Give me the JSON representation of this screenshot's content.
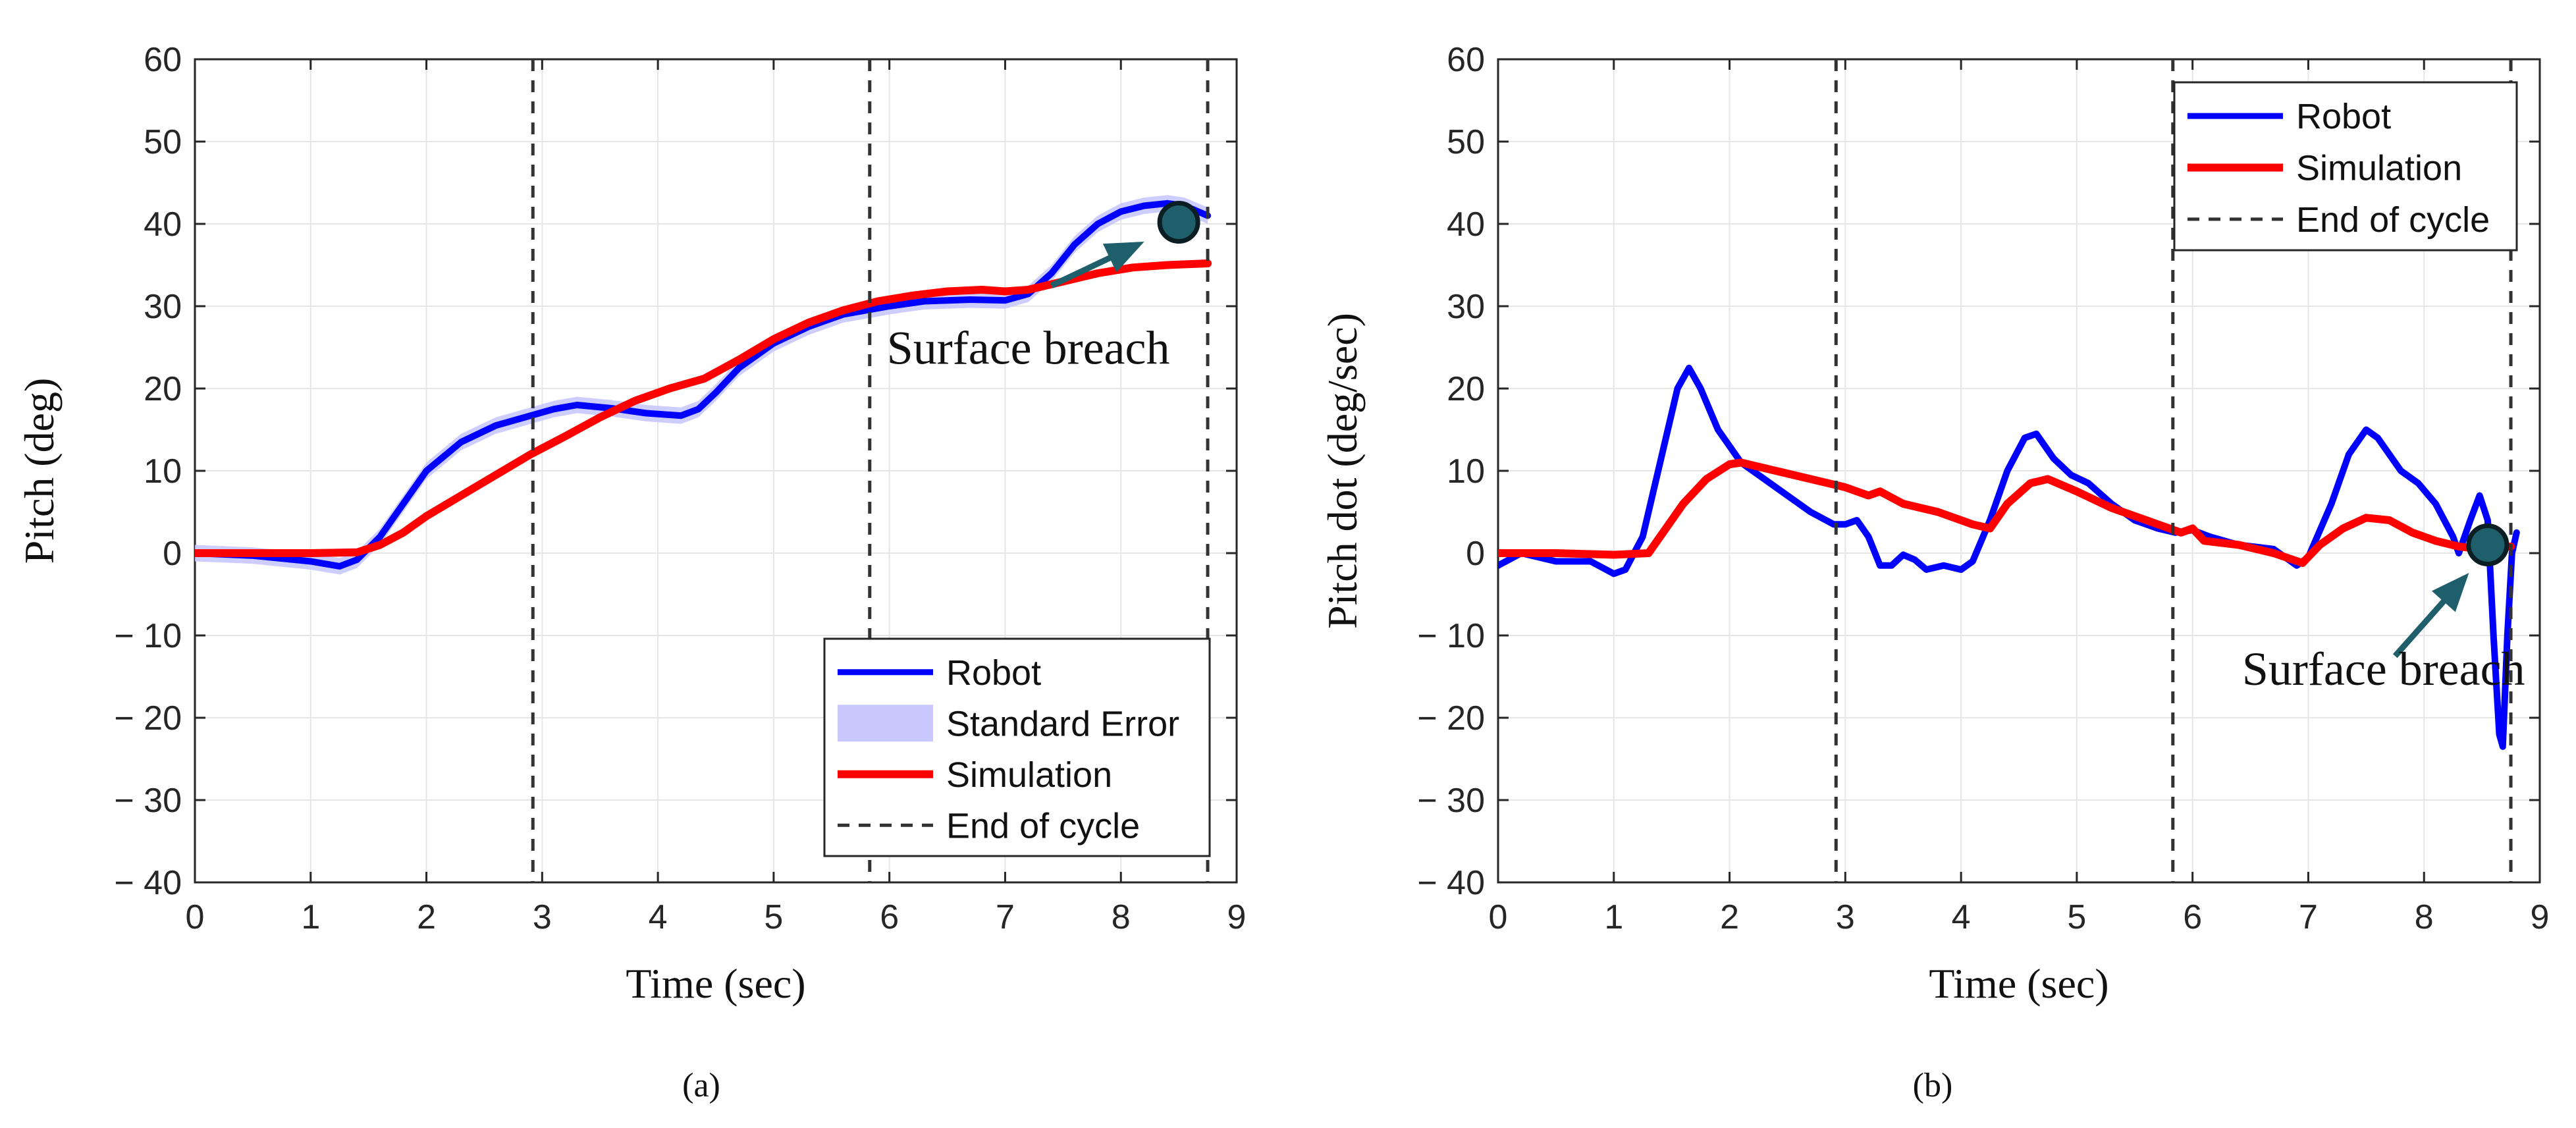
{
  "colors": {
    "robot": "#0000ff",
    "simulation": "#ff0000",
    "stderr_fill": "#c8c8ff",
    "end_of_cycle": "#333333",
    "breach_marker": "#1f5f6b",
    "grid": "#e6e6e6",
    "axis": "#262626"
  },
  "chart_data": [
    {
      "panel": "(a)",
      "type": "line",
      "xlabel": "Time (sec)",
      "ylabel": "Pitch (deg)",
      "xlim": [
        0,
        9
      ],
      "ylim": [
        -40,
        60
      ],
      "xticks": [
        0,
        1,
        2,
        3,
        4,
        5,
        6,
        7,
        8,
        9
      ],
      "yticks": [
        -40,
        -30,
        -20,
        -10,
        0,
        10,
        20,
        30,
        40,
        50,
        60
      ],
      "ytick_labels": [
        "− 40",
        "− 30",
        "− 20",
        "− 10",
        "0",
        "10",
        "20",
        "30",
        "40",
        "50",
        "60"
      ],
      "grid": true,
      "legend_position": "bottom-right",
      "legend": [
        {
          "label": "Robot",
          "kind": "line",
          "color_key": "robot"
        },
        {
          "label": "Standard Error",
          "kind": "patch",
          "color_key": "stderr_fill"
        },
        {
          "label": "Simulation",
          "kind": "line",
          "color_key": "simulation"
        },
        {
          "label": "End of cycle",
          "kind": "dashed",
          "color_key": "end_of_cycle"
        }
      ],
      "end_of_cycle_x": [
        2.92,
        5.83,
        8.75
      ],
      "series": [
        {
          "name": "Robot",
          "color_key": "robot",
          "stderr": 1.0,
          "points": [
            [
              0,
              0
            ],
            [
              0.5,
              -0.3
            ],
            [
              1.0,
              -1.0
            ],
            [
              1.25,
              -1.6
            ],
            [
              1.4,
              -0.8
            ],
            [
              1.6,
              2
            ],
            [
              1.8,
              6
            ],
            [
              2.0,
              10
            ],
            [
              2.3,
              13.5
            ],
            [
              2.6,
              15.5
            ],
            [
              2.9,
              16.7
            ],
            [
              3.1,
              17.5
            ],
            [
              3.3,
              18
            ],
            [
              3.6,
              17.6
            ],
            [
              3.9,
              17
            ],
            [
              4.2,
              16.7
            ],
            [
              4.35,
              17.5
            ],
            [
              4.5,
              19.5
            ],
            [
              4.7,
              22.5
            ],
            [
              5.0,
              25.5
            ],
            [
              5.3,
              27.5
            ],
            [
              5.6,
              29
            ],
            [
              6.0,
              30
            ],
            [
              6.3,
              30.6
            ],
            [
              6.7,
              30.8
            ],
            [
              7.0,
              30.7
            ],
            [
              7.2,
              31.5
            ],
            [
              7.4,
              34
            ],
            [
              7.6,
              37.5
            ],
            [
              7.8,
              40
            ],
            [
              8.0,
              41.5
            ],
            [
              8.2,
              42.2
            ],
            [
              8.4,
              42.5
            ],
            [
              8.55,
              42.2
            ],
            [
              8.7,
              41.3
            ],
            [
              8.75,
              41
            ]
          ]
        },
        {
          "name": "Simulation",
          "color_key": "simulation",
          "points": [
            [
              0,
              0
            ],
            [
              0.5,
              0
            ],
            [
              1.0,
              0
            ],
            [
              1.4,
              0.1
            ],
            [
              1.6,
              1
            ],
            [
              1.8,
              2.5
            ],
            [
              2.0,
              4.5
            ],
            [
              2.3,
              7
            ],
            [
              2.6,
              9.5
            ],
            [
              2.9,
              12
            ],
            [
              3.2,
              14.2
            ],
            [
              3.5,
              16.5
            ],
            [
              3.8,
              18.5
            ],
            [
              4.1,
              20
            ],
            [
              4.4,
              21.2
            ],
            [
              4.7,
              23.5
            ],
            [
              5.0,
              26
            ],
            [
              5.3,
              28
            ],
            [
              5.6,
              29.5
            ],
            [
              5.9,
              30.6
            ],
            [
              6.2,
              31.3
            ],
            [
              6.5,
              31.8
            ],
            [
              6.8,
              32
            ],
            [
              7.0,
              31.8
            ],
            [
              7.2,
              32
            ],
            [
              7.5,
              33
            ],
            [
              7.8,
              34
            ],
            [
              8.1,
              34.7
            ],
            [
              8.4,
              35
            ],
            [
              8.75,
              35.2
            ]
          ]
        }
      ],
      "annotation": {
        "text": "Surface breach",
        "point": [
          8.5,
          40.2
        ],
        "arrow_from": [
          7.4,
          32.5
        ],
        "arrow_to": [
          8.15,
          37.5
        ],
        "text_at": [
          7.2,
          23
        ]
      }
    },
    {
      "panel": "(b)",
      "type": "line",
      "xlabel": "Time (sec)",
      "ylabel": "Pitch dot (deg/sec)",
      "xlim": [
        0,
        9
      ],
      "ylim": [
        -40,
        60
      ],
      "xticks": [
        0,
        1,
        2,
        3,
        4,
        5,
        6,
        7,
        8,
        9
      ],
      "yticks": [
        -40,
        -30,
        -20,
        -10,
        0,
        10,
        20,
        30,
        40,
        50,
        60
      ],
      "ytick_labels": [
        "− 40",
        "− 30",
        "− 20",
        "− 10",
        "0",
        "10",
        "20",
        "30",
        "40",
        "50",
        "60"
      ],
      "grid": true,
      "legend_position": "top-right",
      "legend": [
        {
          "label": "Robot",
          "kind": "line",
          "color_key": "robot"
        },
        {
          "label": "Simulation",
          "kind": "line",
          "color_key": "simulation"
        },
        {
          "label": "End of cycle",
          "kind": "dashed",
          "color_key": "end_of_cycle"
        }
      ],
      "end_of_cycle_x": [
        2.92,
        5.83,
        8.75
      ],
      "series": [
        {
          "name": "Robot",
          "color_key": "robot",
          "points": [
            [
              0,
              -1.5
            ],
            [
              0.2,
              0
            ],
            [
              0.5,
              -1
            ],
            [
              0.8,
              -1
            ],
            [
              1.0,
              -2.5
            ],
            [
              1.1,
              -2
            ],
            [
              1.25,
              2
            ],
            [
              1.4,
              11
            ],
            [
              1.55,
              20
            ],
            [
              1.65,
              22.5
            ],
            [
              1.75,
              20
            ],
            [
              1.9,
              15
            ],
            [
              2.1,
              11
            ],
            [
              2.3,
              9
            ],
            [
              2.5,
              7
            ],
            [
              2.7,
              5
            ],
            [
              2.9,
              3.5
            ],
            [
              3.0,
              3.5
            ],
            [
              3.1,
              4
            ],
            [
              3.2,
              2
            ],
            [
              3.3,
              -1.5
            ],
            [
              3.4,
              -1.5
            ],
            [
              3.5,
              -0.2
            ],
            [
              3.6,
              -0.8
            ],
            [
              3.7,
              -2
            ],
            [
              3.85,
              -1.5
            ],
            [
              4.0,
              -2
            ],
            [
              4.1,
              -1
            ],
            [
              4.25,
              4
            ],
            [
              4.4,
              10
            ],
            [
              4.55,
              14
            ],
            [
              4.65,
              14.5
            ],
            [
              4.8,
              11.5
            ],
            [
              4.95,
              9.5
            ],
            [
              5.1,
              8.5
            ],
            [
              5.3,
              6
            ],
            [
              5.5,
              4
            ],
            [
              5.7,
              3
            ],
            [
              5.85,
              2.5
            ],
            [
              6.0,
              2.8
            ],
            [
              6.15,
              2
            ],
            [
              6.4,
              1
            ],
            [
              6.7,
              0.5
            ],
            [
              6.9,
              -1.5
            ],
            [
              7.0,
              -0.5
            ],
            [
              7.2,
              6
            ],
            [
              7.35,
              12
            ],
            [
              7.5,
              15
            ],
            [
              7.6,
              14
            ],
            [
              7.8,
              10
            ],
            [
              7.95,
              8.5
            ],
            [
              8.1,
              6
            ],
            [
              8.25,
              2
            ],
            [
              8.3,
              0
            ],
            [
              8.4,
              4
            ],
            [
              8.48,
              7
            ],
            [
              8.55,
              4
            ],
            [
              8.6,
              -10
            ],
            [
              8.65,
              -22
            ],
            [
              8.68,
              -23.5
            ],
            [
              8.72,
              -10
            ],
            [
              8.76,
              0
            ],
            [
              8.8,
              2.5
            ]
          ]
        },
        {
          "name": "Simulation",
          "color_key": "simulation",
          "points": [
            [
              0,
              0
            ],
            [
              0.5,
              0
            ],
            [
              1.0,
              -0.2
            ],
            [
              1.3,
              0
            ],
            [
              1.45,
              3
            ],
            [
              1.6,
              6
            ],
            [
              1.8,
              9
            ],
            [
              2.0,
              10.8
            ],
            [
              2.1,
              11
            ],
            [
              2.4,
              10
            ],
            [
              2.7,
              9
            ],
            [
              3.0,
              8
            ],
            [
              3.2,
              7
            ],
            [
              3.3,
              7.5
            ],
            [
              3.5,
              6
            ],
            [
              3.8,
              5
            ],
            [
              4.1,
              3.5
            ],
            [
              4.25,
              3
            ],
            [
              4.4,
              6
            ],
            [
              4.6,
              8.5
            ],
            [
              4.75,
              9
            ],
            [
              5.0,
              7.5
            ],
            [
              5.3,
              5.5
            ],
            [
              5.6,
              4
            ],
            [
              5.9,
              2.5
            ],
            [
              6.0,
              3
            ],
            [
              6.1,
              1.5
            ],
            [
              6.4,
              1
            ],
            [
              6.7,
              0
            ],
            [
              6.95,
              -1.2
            ],
            [
              7.1,
              1
            ],
            [
              7.3,
              3
            ],
            [
              7.5,
              4.3
            ],
            [
              7.7,
              4
            ],
            [
              7.9,
              2.5
            ],
            [
              8.1,
              1.5
            ],
            [
              8.3,
              0.8
            ],
            [
              8.5,
              0.5
            ],
            [
              8.75,
              0.8
            ]
          ]
        }
      ],
      "annotation": {
        "text": "Surface breach",
        "point": [
          8.55,
          1
        ],
        "arrow_from": [
          7.75,
          -12.5
        ],
        "arrow_to": [
          8.35,
          -3
        ],
        "text_at": [
          7.65,
          -16
        ]
      }
    }
  ],
  "captions": [
    "(a)",
    "(b)"
  ]
}
